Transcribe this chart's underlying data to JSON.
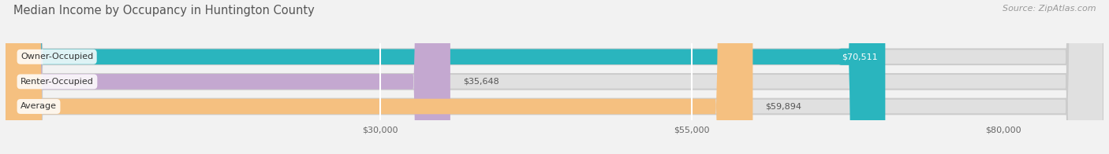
{
  "title": "Median Income by Occupancy in Huntington County",
  "source": "Source: ZipAtlas.com",
  "categories": [
    "Owner-Occupied",
    "Renter-Occupied",
    "Average"
  ],
  "values": [
    70511,
    35648,
    59894
  ],
  "bar_colors": [
    "#2ab5be",
    "#c4a8d0",
    "#f5c080"
  ],
  "bar_labels": [
    "$70,511",
    "$35,648",
    "$59,894"
  ],
  "label_text_colors": [
    "#ffffff",
    "#555555",
    "#555555"
  ],
  "xlim": [
    0,
    88000
  ],
  "xticks": [
    30000,
    55000,
    80000
  ],
  "xtick_labels": [
    "$30,000",
    "$55,000",
    "$80,000"
  ],
  "background_color": "#f2f2f2",
  "bar_bg_color": "#e0e0e0",
  "title_fontsize": 10.5,
  "label_fontsize": 8,
  "value_fontsize": 8,
  "source_fontsize": 8
}
